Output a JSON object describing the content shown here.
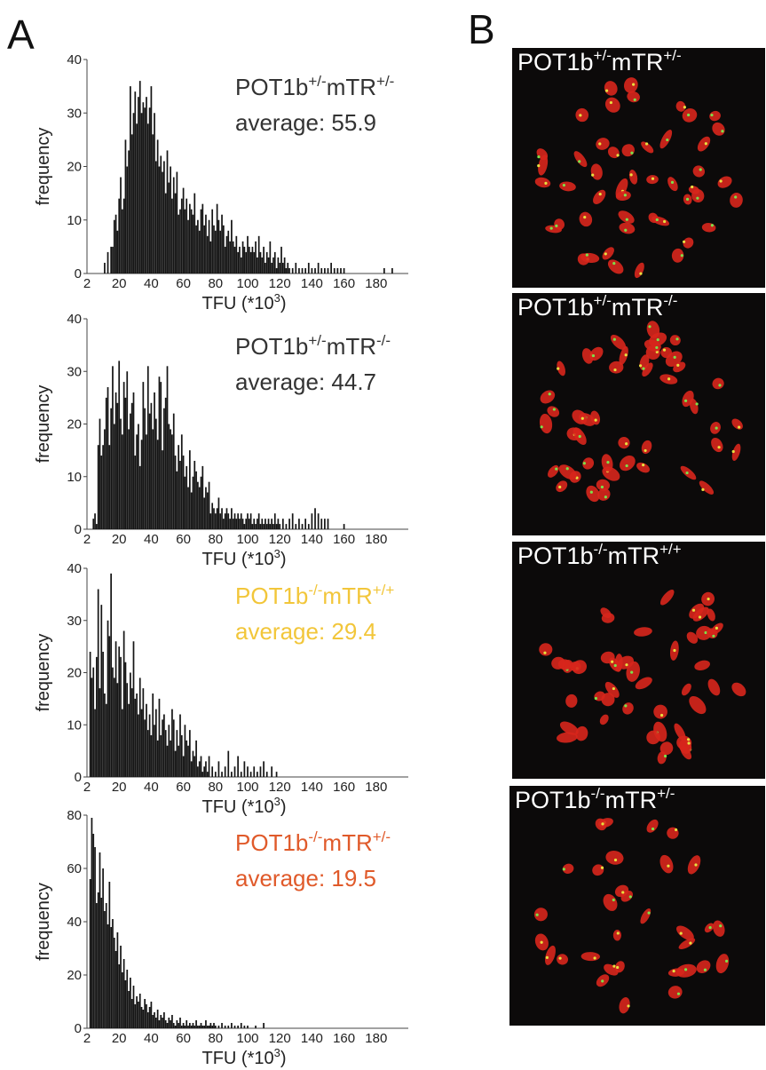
{
  "figure": {
    "panel_a_label": "A",
    "panel_b_label": "B"
  },
  "chart_data": [
    {
      "type": "bar",
      "genotype": {
        "base": "POT1b",
        "sup1": "+/-",
        "mid": "mTR",
        "sup2": "+/-"
      },
      "average_text": "average: 55.9",
      "label_color": "#333333",
      "ylabel": "frequency",
      "xlabel": "TFU (*10",
      "xlabel_sup": "3",
      "xlabel_end": ")",
      "ylim": [
        0,
        40
      ],
      "yticks": [
        0,
        10,
        20,
        30,
        40
      ],
      "xlim": [
        0,
        200
      ],
      "xticks": [
        2,
        20,
        40,
        60,
        80,
        100,
        120,
        140,
        160,
        180
      ],
      "x": [
        11,
        13,
        15,
        16,
        17,
        18,
        19,
        20,
        21,
        22,
        23,
        24,
        25,
        26,
        27,
        28,
        29,
        30,
        31,
        32,
        33,
        34,
        35,
        36,
        37,
        38,
        39,
        40,
        41,
        42,
        43,
        44,
        45,
        46,
        47,
        48,
        49,
        50,
        51,
        52,
        53,
        54,
        55,
        56,
        57,
        58,
        59,
        60,
        61,
        62,
        63,
        64,
        65,
        66,
        67,
        68,
        69,
        70,
        71,
        72,
        73,
        74,
        75,
        76,
        77,
        78,
        79,
        80,
        81,
        82,
        83,
        84,
        85,
        86,
        87,
        88,
        89,
        90,
        91,
        92,
        93,
        94,
        95,
        96,
        97,
        98,
        99,
        100,
        101,
        102,
        103,
        104,
        105,
        106,
        107,
        108,
        109,
        110,
        111,
        112,
        113,
        114,
        115,
        116,
        117,
        118,
        119,
        120,
        121,
        122,
        123,
        124,
        125,
        126,
        128,
        130,
        132,
        134,
        136,
        138,
        140,
        142,
        144,
        146,
        148,
        150,
        152,
        154,
        156,
        158,
        160,
        185,
        190
      ],
      "values": [
        2,
        4,
        5,
        5,
        10,
        11,
        8,
        14,
        18,
        12,
        14,
        25,
        20,
        23,
        35,
        26,
        30,
        34,
        28,
        33,
        36,
        30,
        32,
        31,
        33,
        28,
        31,
        35,
        26,
        30,
        21,
        25,
        20,
        22,
        19,
        21,
        15,
        23,
        17,
        20,
        14,
        18,
        15,
        19,
        11,
        12,
        14,
        16,
        12,
        14,
        10,
        13,
        12,
        11,
        15,
        9,
        10,
        8,
        12,
        13,
        9,
        11,
        7,
        10,
        6,
        12,
        9,
        8,
        13,
        10,
        8,
        11,
        9,
        5,
        7,
        8,
        6,
        10,
        6,
        5,
        7,
        4,
        5,
        3,
        6,
        5,
        4,
        7,
        5,
        4,
        5,
        4,
        6,
        3,
        7,
        4,
        3,
        5,
        2,
        4,
        3,
        6,
        2,
        3,
        4,
        1,
        3,
        2,
        5,
        2,
        3,
        1,
        2,
        1,
        1,
        2,
        1,
        1,
        1,
        2,
        1,
        1,
        2,
        1,
        1,
        1,
        2,
        1,
        1,
        1,
        1,
        1,
        1
      ]
    },
    {
      "type": "bar",
      "genotype": {
        "base": "POT1b",
        "sup1": "+/-",
        "mid": "mTR",
        "sup2": "-/-"
      },
      "average_text": "average: 44.7",
      "label_color": "#333333",
      "ylabel": "frequency",
      "xlabel": "TFU (*10",
      "xlabel_sup": "3",
      "xlabel_end": ")",
      "ylim": [
        0,
        40
      ],
      "yticks": [
        0,
        10,
        20,
        30,
        40
      ],
      "xlim": [
        0,
        200
      ],
      "xticks": [
        2,
        20,
        40,
        60,
        80,
        100,
        120,
        140,
        160,
        180
      ],
      "x": [
        4,
        5,
        6,
        7,
        8,
        9,
        10,
        11,
        12,
        13,
        14,
        15,
        16,
        17,
        18,
        19,
        20,
        21,
        22,
        23,
        24,
        25,
        26,
        27,
        28,
        29,
        30,
        31,
        32,
        33,
        34,
        35,
        36,
        37,
        38,
        39,
        40,
        41,
        42,
        43,
        44,
        45,
        46,
        47,
        48,
        49,
        50,
        51,
        52,
        53,
        54,
        55,
        56,
        57,
        58,
        59,
        60,
        61,
        62,
        63,
        64,
        65,
        66,
        67,
        68,
        69,
        70,
        71,
        72,
        73,
        74,
        75,
        76,
        77,
        78,
        79,
        80,
        81,
        82,
        83,
        84,
        85,
        86,
        87,
        88,
        89,
        90,
        91,
        92,
        93,
        94,
        95,
        96,
        97,
        98,
        99,
        100,
        101,
        102,
        103,
        104,
        105,
        106,
        107,
        108,
        109,
        110,
        111,
        112,
        113,
        114,
        115,
        116,
        117,
        118,
        119,
        120,
        122,
        124,
        126,
        128,
        130,
        132,
        134,
        136,
        138,
        140,
        142,
        144,
        146,
        148,
        150,
        160
      ],
      "values": [
        2,
        3,
        1,
        16,
        21,
        14,
        16,
        19,
        25,
        27,
        16,
        23,
        31,
        20,
        26,
        24,
        32,
        21,
        18,
        28,
        25,
        30,
        19,
        22,
        24,
        26,
        14,
        18,
        20,
        12,
        17,
        28,
        23,
        18,
        31,
        22,
        24,
        19,
        26,
        21,
        17,
        29,
        28,
        15,
        23,
        25,
        31,
        20,
        19,
        18,
        22,
        14,
        11,
        16,
        13,
        18,
        14,
        10,
        12,
        8,
        15,
        7,
        10,
        13,
        11,
        9,
        8,
        10,
        12,
        6,
        8,
        7,
        9,
        3,
        5,
        4,
        3,
        4,
        6,
        3,
        4,
        2,
        3,
        4,
        3,
        2,
        4,
        2,
        3,
        2,
        3,
        2,
        3,
        2,
        1,
        2,
        3,
        2,
        3,
        1,
        2,
        1,
        2,
        3,
        1,
        2,
        1,
        2,
        1,
        2,
        1,
        2,
        1,
        3,
        1,
        2,
        1,
        2,
        1,
        2,
        3,
        1,
        2,
        1,
        2,
        1,
        3,
        4,
        3,
        2,
        2,
        2,
        1
      ]
    },
    {
      "type": "bar",
      "genotype": {
        "base": "POT1b",
        "sup1": "-/-",
        "mid": "mTR",
        "sup2": "+/+"
      },
      "average_text": "average: 29.4",
      "label_color": "#f2c63a",
      "ylabel": "frequency",
      "xlabel": "TFU (*10",
      "xlabel_sup": "3",
      "xlabel_end": ")",
      "ylim": [
        0,
        40
      ],
      "yticks": [
        0,
        10,
        20,
        30,
        40
      ],
      "xlim": [
        0,
        200
      ],
      "xticks": [
        2,
        20,
        40,
        60,
        80,
        100,
        120,
        140,
        160,
        180
      ],
      "x": [
        2,
        3,
        4,
        5,
        6,
        7,
        8,
        9,
        10,
        11,
        12,
        13,
        14,
        15,
        16,
        17,
        18,
        19,
        20,
        21,
        22,
        23,
        24,
        25,
        26,
        27,
        28,
        29,
        30,
        31,
        32,
        33,
        34,
        35,
        36,
        37,
        38,
        39,
        40,
        41,
        42,
        43,
        44,
        45,
        46,
        47,
        48,
        49,
        50,
        51,
        52,
        53,
        54,
        55,
        56,
        57,
        58,
        59,
        60,
        61,
        62,
        63,
        64,
        65,
        66,
        67,
        68,
        69,
        70,
        71,
        72,
        73,
        74,
        75,
        76,
        78,
        80,
        82,
        84,
        86,
        88,
        90,
        92,
        94,
        96,
        98,
        100,
        102,
        104,
        106,
        108,
        110,
        112,
        115,
        118
      ],
      "values": [
        24,
        19,
        21,
        13,
        23,
        36,
        17,
        33,
        24,
        16,
        14,
        30,
        27,
        39,
        21,
        19,
        26,
        18,
        25,
        23,
        13,
        28,
        22,
        18,
        14,
        20,
        17,
        26,
        15,
        16,
        12,
        19,
        13,
        17,
        11,
        14,
        9,
        12,
        8,
        16,
        10,
        13,
        7,
        15,
        8,
        11,
        12,
        9,
        6,
        10,
        7,
        13,
        11,
        5,
        9,
        6,
        12,
        8,
        4,
        10,
        7,
        6,
        9,
        3,
        5,
        4,
        7,
        2,
        3,
        4,
        1,
        2,
        3,
        1,
        4,
        2,
        1,
        3,
        1,
        2,
        5,
        1,
        2,
        4,
        1,
        3,
        2,
        1,
        2,
        1,
        2,
        3,
        1,
        2,
        1
      ]
    },
    {
      "type": "bar",
      "genotype": {
        "base": "POT1b",
        "sup1": "-/-",
        "mid": "mTR",
        "sup2": "+/-"
      },
      "average_text": "average: 19.5",
      "label_color": "#e05a2a",
      "ylabel": "frequency",
      "xlabel": "TFU (*10",
      "xlabel_sup": "3",
      "xlabel_end": ")",
      "ylim": [
        0,
        80
      ],
      "yticks": [
        0,
        20,
        40,
        60,
        80
      ],
      "xlim": [
        0,
        200
      ],
      "xticks": [
        2,
        20,
        40,
        60,
        80,
        100,
        120,
        140,
        160,
        180
      ],
      "x": [
        2,
        3,
        4,
        5,
        6,
        7,
        8,
        9,
        10,
        11,
        12,
        13,
        14,
        15,
        16,
        17,
        18,
        19,
        20,
        21,
        22,
        23,
        24,
        25,
        26,
        27,
        28,
        29,
        30,
        31,
        32,
        33,
        34,
        35,
        36,
        37,
        38,
        39,
        40,
        41,
        42,
        43,
        44,
        45,
        46,
        47,
        48,
        49,
        50,
        51,
        52,
        53,
        54,
        55,
        56,
        57,
        58,
        59,
        60,
        61,
        62,
        63,
        64,
        65,
        66,
        67,
        68,
        69,
        70,
        71,
        72,
        73,
        74,
        75,
        76,
        77,
        78,
        79,
        80,
        82,
        84,
        86,
        88,
        90,
        92,
        94,
        96,
        98,
        100,
        105,
        110
      ],
      "values": [
        56,
        79,
        73,
        68,
        47,
        51,
        66,
        49,
        60,
        44,
        47,
        39,
        55,
        38,
        41,
        34,
        29,
        36,
        24,
        31,
        21,
        26,
        18,
        22,
        14,
        19,
        11,
        16,
        9,
        12,
        10,
        13,
        8,
        7,
        11,
        9,
        6,
        8,
        10,
        5,
        6,
        4,
        7,
        3,
        5,
        4,
        6,
        3,
        2,
        4,
        3,
        5,
        2,
        1,
        3,
        2,
        4,
        1,
        2,
        1,
        3,
        1,
        2,
        1,
        2,
        1,
        3,
        1,
        1,
        2,
        1,
        1,
        3,
        1,
        1,
        2,
        1,
        2,
        1,
        1,
        2,
        1,
        1,
        2,
        1,
        1,
        2,
        1,
        1,
        1,
        2
      ]
    }
  ],
  "micrographs": [
    {
      "base": "POT1b",
      "sup1": "+/-",
      "mid": "mTR",
      "sup2": "+/-"
    },
    {
      "base": "POT1b",
      "sup1": "+/-",
      "mid": "mTR",
      "sup2": "-/-"
    },
    {
      "base": "POT1b",
      "sup1": "-/-",
      "mid": "mTR",
      "sup2": "+/+"
    },
    {
      "base": "POT1b",
      "sup1": "-/-",
      "mid": "mTR",
      "sup2": "+/-"
    }
  ]
}
